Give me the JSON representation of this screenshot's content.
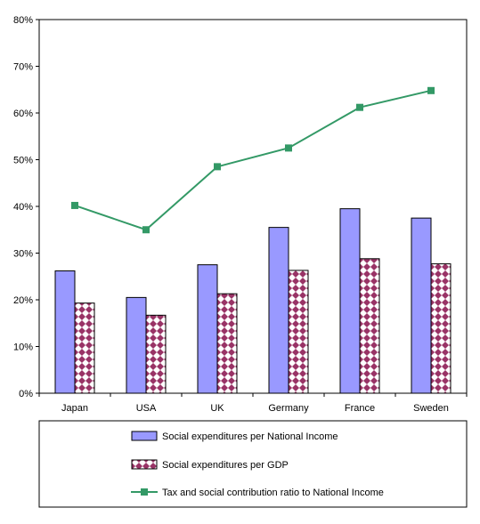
{
  "chart_data": {
    "type": "bar",
    "categories": [
      "Japan",
      "USA",
      "UK",
      "Germany",
      "France",
      "Sweden"
    ],
    "series": [
      {
        "name": "Social expenditures per National Income",
        "kind": "bar",
        "pattern": "solid",
        "color": "#9999ff",
        "values": [
          26.2,
          20.5,
          27.5,
          35.5,
          39.5,
          37.5
        ]
      },
      {
        "name": "Social expenditures per GDP",
        "kind": "bar",
        "pattern": "diamond-check",
        "color": "#993366",
        "values": [
          19.3,
          16.7,
          21.3,
          26.3,
          28.8,
          27.7
        ]
      },
      {
        "name": "Tax and social contribution ratio to National Income",
        "kind": "line",
        "color": "#339966",
        "values": [
          40.2,
          35.0,
          48.5,
          52.5,
          61.2,
          64.8
        ]
      }
    ],
    "ylim": [
      0,
      80
    ],
    "yticks": [
      "0%",
      "10%",
      "20%",
      "30%",
      "40%",
      "50%",
      "60%",
      "70%",
      "80%"
    ],
    "title": "",
    "xlabel": "",
    "ylabel": "",
    "grid": false,
    "legend_position": "bottom"
  }
}
